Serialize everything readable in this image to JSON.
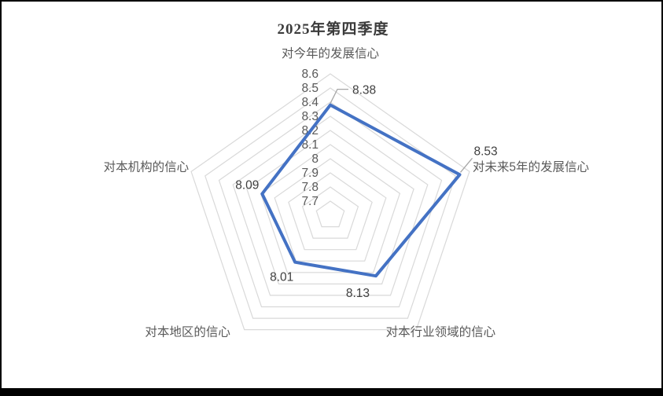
{
  "window": {
    "background": "#FFFFFF",
    "border_color": "#000000"
  },
  "chart_data": {
    "type": "radar",
    "title": "2025年第四季度",
    "legend": "none",
    "grid": true,
    "categories": [
      "对今年的发展信心",
      "对未来5年的发展信心",
      "对本行业领域的信心",
      "对本地区的信心",
      "对本机构的信心"
    ],
    "series": [
      {
        "name": "2025年第四季度",
        "values": [
          8.38,
          8.53,
          8.13,
          8.01,
          8.09
        ]
      }
    ],
    "data_labels": [
      "8.38",
      "8.53",
      "8.13",
      "8.01",
      "8.09"
    ],
    "axis": {
      "min": 7.6,
      "max": 8.6,
      "step": 0.1,
      "tick_labels": [
        "8.6",
        "8.5",
        "8.4",
        "8.3",
        "8.2",
        "8.1",
        "8",
        "7.9",
        "7.8",
        "7.7"
      ]
    },
    "colors": {
      "series_line": "#4472C4",
      "gridline": "#D9D9D9",
      "tick_text": "#595959",
      "category_text": "#595959",
      "data_label_text": "#404040",
      "leader_line": "#A6A6A6",
      "title_text": "#3B3B3B"
    }
  }
}
